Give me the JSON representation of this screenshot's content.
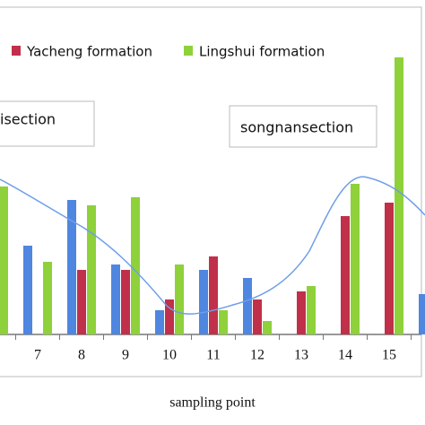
{
  "chart_data": {
    "type": "bar",
    "categories": [
      null,
      "7",
      "8",
      "9",
      "10",
      "11",
      "12",
      "13",
      "14",
      "15",
      null
    ],
    "series": [
      {
        "color": "#4f86e0",
        "values": [
          null,
          33,
          50,
          26,
          9,
          24,
          21,
          null,
          null,
          null,
          15
        ]
      },
      {
        "name": "Yacheng formation",
        "color": "#c0304a",
        "values": [
          null,
          null,
          24,
          24,
          13,
          29,
          13,
          16,
          44,
          49,
          null
        ]
      },
      {
        "name": "Lingshui formation",
        "color": "#8ed13a",
        "values": [
          55,
          27,
          48,
          51,
          26,
          9,
          5,
          18,
          56,
          103,
          null
        ]
      }
    ],
    "ylim": [
      0,
      120
    ],
    "xlabel": "sampling point",
    "annotations": [
      "isection",
      "songnansection"
    ]
  }
}
